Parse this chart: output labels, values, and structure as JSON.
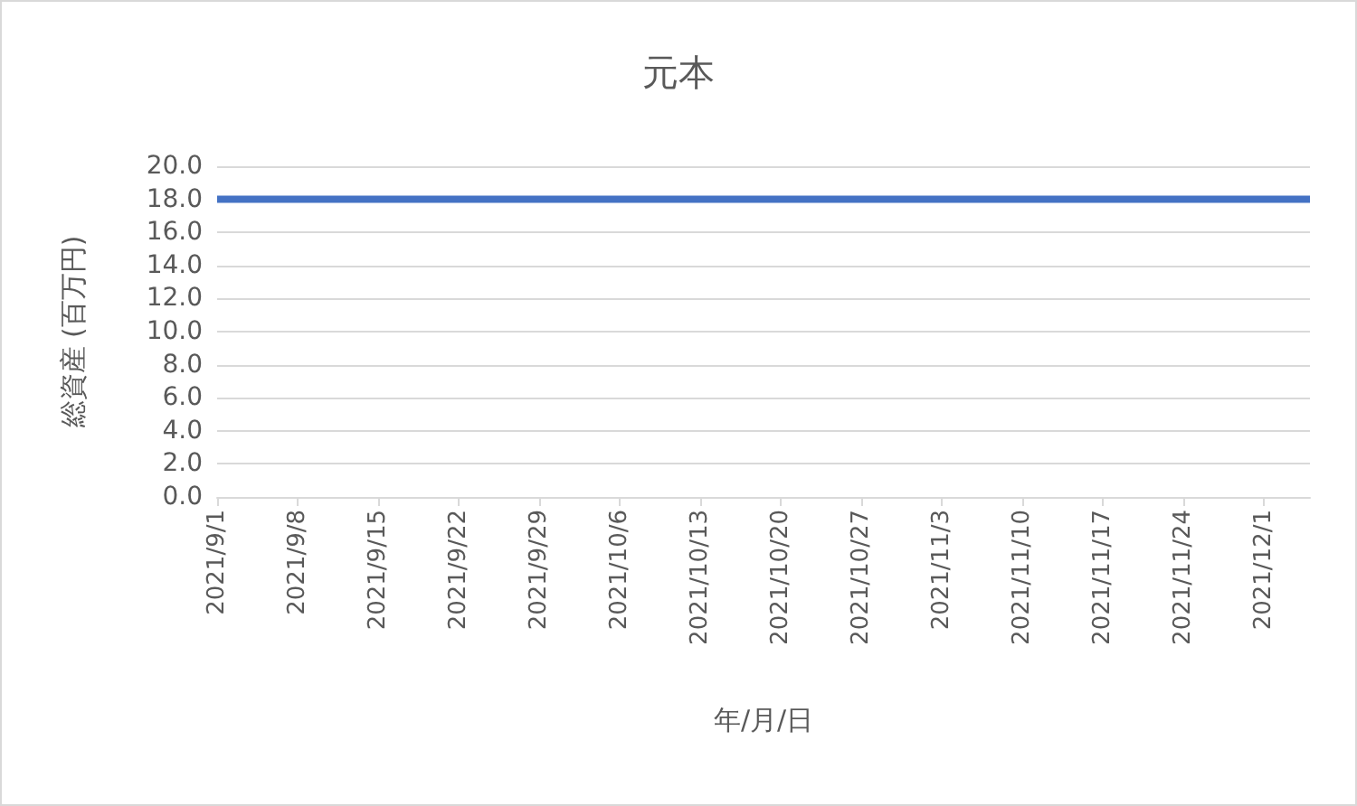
{
  "chart_data": {
    "type": "line",
    "title": "元本",
    "xlabel": "年/月/日",
    "ylabel": "総資産 (百万円)",
    "x": [
      "2021-09-01",
      "2021-12-05"
    ],
    "series": [
      {
        "color": "#4472c4",
        "values": [
          18,
          18
        ]
      }
    ],
    "xlim": [
      "2021-09-01",
      "2021-12-05"
    ],
    "xticks": [
      {
        "value": "2021-09-01",
        "label": "2021/9/1"
      },
      {
        "value": "2021-09-08",
        "label": "2021/9/8"
      },
      {
        "value": "2021-09-15",
        "label": "2021/9/15"
      },
      {
        "value": "2021-09-22",
        "label": "2021/9/22"
      },
      {
        "value": "2021-09-29",
        "label": "2021/9/29"
      },
      {
        "value": "2021-10-06",
        "label": "2021/10/6"
      },
      {
        "value": "2021-10-13",
        "label": "2021/10/13"
      },
      {
        "value": "2021-10-20",
        "label": "2021/10/20"
      },
      {
        "value": "2021-10-27",
        "label": "2021/10/27"
      },
      {
        "value": "2021-11-03",
        "label": "2021/11/3"
      },
      {
        "value": "2021-11-10",
        "label": "2021/11/10"
      },
      {
        "value": "2021-11-17",
        "label": "2021/11/17"
      },
      {
        "value": "2021-11-24",
        "label": "2021/11/24"
      },
      {
        "value": "2021-12-01",
        "label": "2021/12/1"
      }
    ],
    "ylim": [
      0,
      20
    ],
    "yticks": [
      {
        "value": 0,
        "label": "0.0"
      },
      {
        "value": 2,
        "label": "2.0"
      },
      {
        "value": 4,
        "label": "4.0"
      },
      {
        "value": 6,
        "label": "6.0"
      },
      {
        "value": 8,
        "label": "8.0"
      },
      {
        "value": 10,
        "label": "10.0"
      },
      {
        "value": 12,
        "label": "12.0"
      },
      {
        "value": 14,
        "label": "14.0"
      },
      {
        "value": 16,
        "label": "16.0"
      },
      {
        "value": 18,
        "label": "18.0"
      },
      {
        "value": 20,
        "label": "20.0"
      }
    ],
    "grid": "y",
    "marker": "none",
    "line_style": "solid"
  }
}
